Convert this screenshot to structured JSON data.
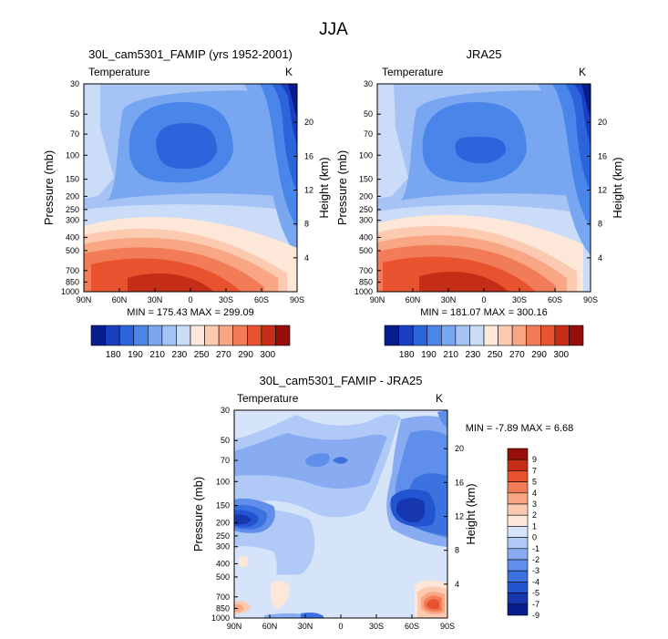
{
  "figure_title": "JJA",
  "chart_data": [
    {
      "type": "contour",
      "id": "p1",
      "title": "30L_cam5301_FAMIP (yrs 1952-2001)",
      "left_label": "Temperature",
      "unit": "K",
      "xlabel": "",
      "ylabel": "Pressure (mb)",
      "right_label": "Height (km)",
      "x_ticks": [
        "90N",
        "60N",
        "30N",
        "0",
        "30S",
        "60S",
        "90S"
      ],
      "y_ticks": [
        "30",
        "50",
        "70",
        "100",
        "150",
        "200",
        "250",
        "300",
        "400",
        "500",
        "700",
        "850",
        "1000"
      ],
      "height_ticks": [
        "20",
        "16",
        "12",
        "8",
        "4"
      ],
      "min_max": "MIN = 175.43  MAX = 299.09",
      "colorbar_labels": [
        "180",
        "190",
        "210",
        "230",
        "250",
        "270",
        "290",
        "300"
      ]
    },
    {
      "type": "contour",
      "id": "p2",
      "title": "JRA25",
      "left_label": "Temperature",
      "unit": "K",
      "xlabel": "",
      "ylabel": "Pressure (mb)",
      "right_label": "Height (km)",
      "x_ticks": [
        "90N",
        "60N",
        "30N",
        "0",
        "30S",
        "60S",
        "90S"
      ],
      "y_ticks": [
        "30",
        "50",
        "70",
        "100",
        "150",
        "200",
        "250",
        "300",
        "400",
        "500",
        "700",
        "850",
        "1000"
      ],
      "height_ticks": [
        "20",
        "16",
        "12",
        "8",
        "4"
      ],
      "min_max": "MIN = 181.07  MAX = 300.16",
      "colorbar_labels": [
        "180",
        "190",
        "210",
        "230",
        "250",
        "270",
        "290",
        "300"
      ]
    },
    {
      "type": "contour",
      "id": "p3",
      "title": "30L_cam5301_FAMIP - JRA25",
      "left_label": "Temperature",
      "unit": "K",
      "xlabel": "",
      "ylabel": "Pressure (mb)",
      "right_label": "Height (km)",
      "x_ticks": [
        "90N",
        "60N",
        "30N",
        "0",
        "30S",
        "60S",
        "90S"
      ],
      "y_ticks": [
        "30",
        "50",
        "70",
        "100",
        "150",
        "200",
        "250",
        "300",
        "400",
        "500",
        "700",
        "850",
        "1000"
      ],
      "height_ticks": [
        "20",
        "16",
        "12",
        "8",
        "4"
      ],
      "min_max": "MIN = -7.89  MAX =  6.68",
      "colorbar_labels": [
        "9",
        "7",
        "5",
        "4",
        "3",
        "2",
        "1",
        "0",
        "-1",
        "-2",
        "-3",
        "-4",
        "-5",
        "-7",
        "-9"
      ]
    }
  ],
  "colors": {
    "temp_scale": [
      "#081d8c",
      "#1a3fc0",
      "#2c64dc",
      "#4a86ea",
      "#79a6f0",
      "#a5c3f5",
      "#cbdcf9",
      "#fde7d9",
      "#fbcab1",
      "#f8a684",
      "#f37c58",
      "#e8522f",
      "#c62d17",
      "#960f0a"
    ],
    "diff_scale": [
      "#081d8c",
      "#1637b0",
      "#2455d0",
      "#3b72e0",
      "#5f8fea",
      "#88abf2",
      "#b0c9f6",
      "#d6e4fa",
      "#fde7d9",
      "#fbcab1",
      "#f8a684",
      "#f37c58",
      "#e8522f",
      "#c62d17",
      "#960f0a"
    ]
  }
}
